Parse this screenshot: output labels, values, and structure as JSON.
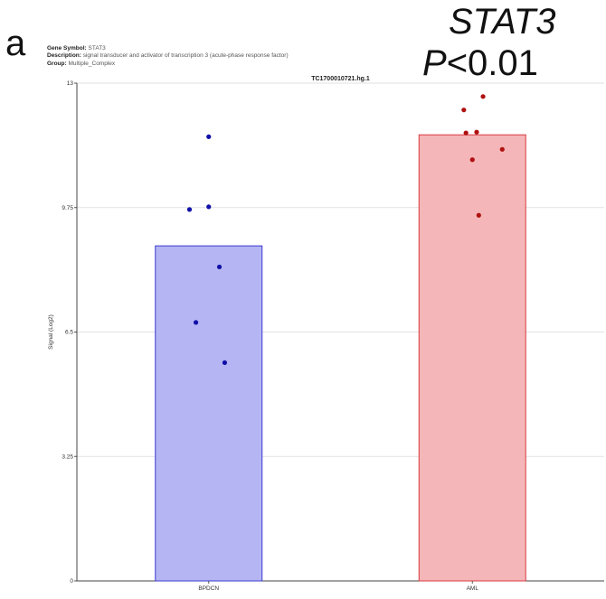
{
  "panel_label": "a",
  "annotation": {
    "gene": "STAT3",
    "p_prefix": "P",
    "p_suffix": "<0.01"
  },
  "metadata": {
    "gene_symbol_label": "Gene Symbol:",
    "gene_symbol": "STAT3",
    "description_label": "Description:",
    "description": "signal transducer and activator of transcription 3 (acute-phase response factor)",
    "group_label": "Group:",
    "group": "Multiple_Complex"
  },
  "chart_data": {
    "type": "bar",
    "title": "TC1700010721.hg.1",
    "xlabel": "",
    "ylabel": "Signal (Log2)",
    "ylim": [
      0,
      13
    ],
    "yticks": [
      "0",
      "3.25",
      "6.5",
      "9.75",
      "13"
    ],
    "grid": true,
    "categories": [
      "BPDCN",
      "AML"
    ],
    "values": [
      8.75,
      11.65
    ],
    "points": [
      {
        "category": "BPDCN",
        "values": [
          11.6,
          9.7,
          9.77,
          8.2,
          6.75,
          5.7
        ]
      },
      {
        "category": "AML",
        "values": [
          12.3,
          12.65,
          11.7,
          11.72,
          11.0,
          11.27,
          9.55
        ]
      }
    ],
    "colors": {
      "BPDCN_fill": "#b5b5f3",
      "BPDCN_stroke": "#3a3ad0",
      "BPDCN_point": "#1010a8",
      "AML_fill": "#f4b6b8",
      "AML_stroke": "#d83a40",
      "AML_point": "#b01010"
    }
  }
}
